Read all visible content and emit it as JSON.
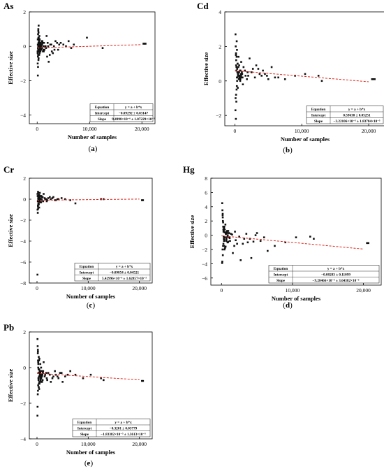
{
  "chart_data": [
    {
      "type": "scatter",
      "panel_title": "As",
      "caption_letter": "a",
      "xlabel": "Number of samples",
      "ylabel": "Effective size",
      "xlim": [
        -1500,
        22500
      ],
      "ylim": [
        -4.5,
        2
      ],
      "xticks": [
        0,
        10000,
        20000
      ],
      "xtick_labels": [
        "0",
        "10,000",
        "20,000"
      ],
      "yticks": [
        2,
        0,
        -2,
        -4
      ],
      "ytick_labels": [
        "2",
        "0",
        "−2",
        "−4"
      ],
      "fit_line": {
        "x": [
          0,
          20000
        ],
        "y": [
          -0.093,
          0.097
        ]
      },
      "stats_table": {
        "rows": [
          [
            "Equation",
            "y = a + b*x"
          ],
          [
            "Intercept",
            "−0.09292 ± 0.03147"
          ],
          [
            "Slope",
            "9.4998×10⁻⁶ ± 1.07229×10⁻⁵"
          ]
        ]
      },
      "points": {
        "x": [
          120,
          200,
          150,
          250,
          80,
          300,
          180,
          260,
          220,
          140,
          350,
          400,
          500,
          450,
          600,
          700,
          800,
          900,
          1000,
          1200,
          1500,
          1800,
          2000,
          2500,
          3000,
          3500,
          4000,
          4500,
          5000,
          6000,
          7000,
          9500,
          12500,
          20300,
          20500,
          20700,
          100,
          130,
          160,
          210,
          240,
          280,
          320,
          370,
          420,
          470,
          550,
          650,
          750,
          850,
          950,
          1100,
          1300,
          1600,
          1900,
          2200,
          2700,
          3200,
          110,
          90,
          170,
          190,
          230,
          270,
          310,
          340,
          380,
          430,
          480,
          520,
          580,
          620,
          680,
          720,
          780,
          820,
          880,
          940,
          1050,
          1150,
          1250,
          1400,
          1700,
          2100,
          2400,
          2800,
          3300,
          3800,
          4200,
          5500,
          6500
        ],
        "y": [
          0.1,
          0.0,
          -0.1,
          0.2,
          -0.3,
          0.5,
          -0.5,
          0.8,
          1.0,
          -0.6,
          0.3,
          0.1,
          -0.2,
          0.4,
          0.0,
          0.2,
          -0.1,
          0.1,
          0.3,
          -0.2,
          0.0,
          0.6,
          0.2,
          0.1,
          -0.4,
          0.3,
          -0.2,
          0.2,
          0.1,
          0.3,
          0.1,
          0.5,
          -0.1,
          0.15,
          0.15,
          0.15,
          -1.0,
          -1.7,
          -1.2,
          0.9,
          -0.8,
          1.2,
          0.4,
          -0.3,
          0.6,
          -0.4,
          0.2,
          0.0,
          -0.1,
          0.3,
          0.1,
          -0.3,
          0.2,
          0.0,
          -0.6,
          -0.9,
          0.1,
          0.0,
          0.4,
          -0.4,
          0.7,
          -0.2,
          0.5,
          -0.7,
          0.0,
          0.3,
          -0.5,
          0.2,
          0.4,
          -0.1,
          0.1,
          -0.3,
          0.2,
          0.0,
          -0.2,
          0.1,
          0.3,
          -0.1,
          0.2,
          0.0,
          -0.3,
          -0.2,
          -0.1,
          0.0,
          -0.5,
          -0.3,
          -0.2,
          0.2,
          0.1,
          0.0,
          -0.1
        ]
      }
    },
    {
      "type": "scatter",
      "panel_title": "Cd",
      "caption_letter": "b",
      "xlabel": "Number of samples",
      "ylabel": "Effective size",
      "xlim": [
        -1500,
        22500
      ],
      "ylim": [
        -2.6,
        4
      ],
      "xticks": [
        0,
        10000,
        20000
      ],
      "xtick_labels": [
        "0",
        "10,000",
        "20,000"
      ],
      "yticks": [
        4,
        2,
        0,
        -2
      ],
      "ytick_labels": [
        "4",
        "2",
        "0",
        "−2"
      ],
      "fit_line": {
        "x": [
          0,
          20000
        ],
        "y": [
          0.596,
          -0.048
        ]
      },
      "stats_table": {
        "rows": [
          [
            "Equation",
            "y = a + b*x"
          ],
          [
            "Intercept",
            "0.59638 ± 0.05251"
          ],
          [
            "Slope",
            "−3.22106×10⁻⁵ ± 1.83784×10⁻⁵"
          ]
        ]
      },
      "points": {
        "x": [
          100,
          130,
          160,
          200,
          240,
          280,
          320,
          370,
          420,
          470,
          550,
          650,
          750,
          850,
          950,
          1100,
          1300,
          1600,
          1900,
          2200,
          2700,
          3200,
          3700,
          4200,
          4800,
          5500,
          6500,
          7500,
          9000,
          10500,
          12500,
          13000,
          20500,
          20700,
          20900,
          110,
          90,
          150,
          180,
          220,
          260,
          300,
          340,
          390,
          440,
          500,
          600,
          700,
          800,
          900,
          1000,
          1200,
          1500,
          1800,
          2000,
          2500,
          3000,
          3500,
          4000,
          4500,
          5000,
          6000,
          170,
          190,
          230,
          270,
          310,
          350,
          400,
          460,
          520,
          580,
          640,
          700,
          760,
          820,
          880,
          940,
          1050,
          1150
        ],
        "y": [
          2.7,
          2.0,
          1.5,
          1.2,
          0.8,
          2.3,
          1.8,
          0.5,
          1.0,
          0.3,
          1.4,
          0.9,
          0.2,
          0.6,
          1.1,
          0.4,
          0.8,
          0.3,
          0.5,
          1.3,
          0.7,
          0.9,
          0.4,
          0.6,
          0.3,
          0.8,
          0.2,
          0.1,
          0.3,
          0.4,
          0.3,
          0.0,
          0.1,
          0.1,
          0.1,
          -1.0,
          -1.7,
          -2.2,
          -0.8,
          -1.2,
          -0.5,
          -0.3,
          0.0,
          0.2,
          -0.4,
          0.5,
          0.1,
          0.3,
          0.0,
          0.4,
          0.2,
          -0.2,
          0.6,
          0.1,
          0.3,
          0.5,
          0.2,
          0.7,
          0.3,
          0.4,
          0.1,
          0.2,
          1.6,
          0.9,
          0.6,
          1.4,
          0.2,
          0.7,
          1.0,
          0.4,
          0.8,
          0.3,
          0.5,
          0.2,
          0.6,
          0.1,
          0.4,
          0.3,
          0.5,
          0.2
        ]
      }
    },
    {
      "type": "scatter",
      "panel_title": "Cr",
      "caption_letter": "c",
      "xlabel": "Number of samples",
      "ylabel": "Effective size",
      "xlim": [
        -1500,
        22500
      ],
      "ylim": [
        -8,
        2
      ],
      "xticks": [
        0,
        10000,
        20000
      ],
      "xtick_labels": [
        "0",
        "10,000",
        "20,000"
      ],
      "yticks": [
        2,
        0,
        -2,
        -4,
        -6,
        -8
      ],
      "ytick_labels": [
        "2",
        "0",
        "−2",
        "−4",
        "−6",
        "−8"
      ],
      "fit_line": {
        "x": [
          0,
          20000
        ],
        "y": [
          -0.099,
          0.009
        ]
      },
      "stats_table": {
        "rows": [
          [
            "Equation",
            "y = a + b*x"
          ],
          [
            "Intercept",
            "−0.09854 ± 0.04521"
          ],
          [
            "Slope",
            "5.42996×10⁻⁶ ± 1.62857×10⁻⁵"
          ]
        ]
      },
      "points": {
        "x": [
          100,
          130,
          160,
          200,
          240,
          280,
          320,
          370,
          420,
          470,
          550,
          650,
          750,
          850,
          950,
          1100,
          1300,
          1600,
          1900,
          2200,
          2700,
          3200,
          3700,
          4200,
          4800,
          5500,
          6500,
          7500,
          12500,
          13000,
          20500,
          20700,
          110,
          90,
          150,
          180,
          220,
          260,
          300,
          340,
          390,
          440,
          500,
          600,
          700,
          800,
          900,
          1000,
          1200,
          1500,
          1800,
          2000,
          2500,
          3000,
          3500,
          4000,
          170,
          190,
          230,
          270,
          310,
          350,
          400,
          460,
          520,
          580
        ],
        "y": [
          0.5,
          0.3,
          -0.2,
          0.7,
          0.0,
          -0.5,
          0.4,
          0.1,
          -0.8,
          0.2,
          0.6,
          -0.3,
          0.0,
          0.3,
          -0.1,
          0.2,
          0.5,
          0.0,
          -0.2,
          0.1,
          0.0,
          0.2,
          -0.1,
          0.0,
          0.1,
          0.0,
          -0.1,
          -0.4,
          0.0,
          0.0,
          -0.1,
          -0.1,
          -1.0,
          -7.2,
          -1.3,
          -0.6,
          -0.9,
          0.6,
          -0.4,
          0.2,
          -0.2,
          0.4,
          -0.1,
          0.1,
          0.3,
          -0.3,
          0.0,
          0.2,
          -0.2,
          0.1,
          0.0,
          -0.1,
          0.2,
          0.1,
          -0.1,
          0.0,
          0.3,
          -0.7,
          0.1,
          -0.4,
          0.2,
          -0.5,
          0.0,
          0.3,
          -0.2,
          0.1
        ]
      }
    },
    {
      "type": "scatter",
      "panel_title": "Hg",
      "caption_letter": "d",
      "xlabel": "Number of samples",
      "ylabel": "Effective size",
      "xlim": [
        -1500,
        22500
      ],
      "ylim": [
        -7,
        8
      ],
      "xticks": [
        0,
        10000,
        20000
      ],
      "xtick_labels": [
        "0",
        "10,000",
        "20,000"
      ],
      "yticks": [
        8,
        6,
        4,
        2,
        0,
        -2,
        -4,
        -6
      ],
      "ytick_labels": [
        "8",
        "6",
        "4",
        "2",
        "0",
        "−2",
        "−4",
        "−6"
      ],
      "fit_line": {
        "x": [
          0,
          20000
        ],
        "y": [
          -0.083,
          -1.94
        ]
      },
      "stats_table": {
        "rows": [
          [
            "Equation",
            "y = a + b*x"
          ],
          [
            "Intercept",
            "−0.08283 ± 0.11099"
          ],
          [
            "Slope",
            "−9.28466×10⁻⁵ ± 3.64382×10⁻⁵"
          ]
        ]
      },
      "points": {
        "x": [
          100,
          130,
          160,
          200,
          240,
          280,
          320,
          370,
          420,
          470,
          550,
          650,
          750,
          850,
          950,
          1100,
          1300,
          1600,
          1900,
          2200,
          2700,
          3200,
          3700,
          4200,
          4800,
          5500,
          6500,
          7500,
          9000,
          10500,
          12500,
          13000,
          20500,
          20700,
          110,
          90,
          150,
          180,
          220,
          260,
          300,
          340,
          390,
          440,
          500,
          600,
          700,
          800,
          900,
          1000,
          1200,
          1500,
          1800,
          2000,
          2500,
          3000,
          3500,
          4000,
          4500,
          5000,
          6000,
          170,
          190,
          230,
          270,
          310,
          350,
          400,
          460,
          520,
          580,
          640,
          700,
          760,
          820,
          880,
          940,
          1050,
          1150
        ],
        "y": [
          4.5,
          3.5,
          2.8,
          2.0,
          1.2,
          0.5,
          -0.5,
          -1.5,
          -2.0,
          0.8,
          1.5,
          -0.8,
          0.3,
          -1.0,
          0.6,
          -0.3,
          0.2,
          -2.5,
          0.5,
          -1.2,
          -3.5,
          -0.5,
          -1.0,
          -3.2,
          0.0,
          -0.8,
          -2.2,
          -1.5,
          -1.0,
          -0.3,
          -0.2,
          -0.5,
          -1.1,
          -1.1,
          -3.7,
          -3.9,
          -2.0,
          2.5,
          -1.5,
          0.8,
          -0.2,
          1.0,
          -0.6,
          0.4,
          -1.8,
          0.2,
          -0.4,
          0.6,
          -1.0,
          0.3,
          -0.8,
          0.1,
          -1.5,
          -0.7,
          -0.2,
          -1.2,
          0.2,
          -0.5,
          -0.9,
          0.3,
          -0.3,
          3.0,
          -2.8,
          1.8,
          -1.2,
          0.6,
          -0.8,
          1.2,
          -0.3,
          0.4,
          -1.6,
          0.2,
          -0.6,
          0.5,
          -0.2,
          0.0,
          -0.9,
          0.3,
          -0.4
        ]
      }
    },
    {
      "type": "scatter",
      "panel_title": "Pb",
      "caption_letter": "e",
      "xlabel": "Number of samples",
      "ylabel": "Effective size",
      "xlim": [
        -1500,
        22500
      ],
      "ylim": [
        -4,
        2
      ],
      "xticks": [
        0,
        10000,
        20000
      ],
      "xtick_labels": [
        "0",
        "10,000",
        "20,000"
      ],
      "yticks": [
        2,
        0,
        -2,
        -4
      ],
      "ytick_labels": [
        "2",
        "0",
        "−2",
        "−4"
      ],
      "fit_line": {
        "x": [
          0,
          20000
        ],
        "y": [
          -0.32,
          -0.687
        ]
      },
      "stats_table": {
        "rows": [
          [
            "Equation",
            "y = a + b*x"
          ],
          [
            "Intercept",
            "−0.3201 ± 0.03779"
          ],
          [
            "Slope",
            "−1.83382×10⁻⁵ ± 1.3613×10⁻⁵"
          ]
        ]
      },
      "points": {
        "x": [
          100,
          130,
          160,
          200,
          240,
          280,
          320,
          370,
          420,
          470,
          550,
          650,
          750,
          850,
          950,
          1100,
          1300,
          1600,
          1900,
          2200,
          2700,
          3200,
          3700,
          4200,
          4800,
          5500,
          6500,
          7500,
          9000,
          10500,
          12500,
          13000,
          20500,
          20700,
          110,
          90,
          150,
          180,
          220,
          260,
          300,
          340,
          390,
          440,
          500,
          600,
          700,
          800,
          900,
          1000,
          1200,
          1500,
          1800,
          2000,
          2500,
          3000,
          3500,
          4000,
          4500,
          5000,
          6000,
          170,
          190,
          230,
          270,
          310,
          350,
          400,
          460,
          520,
          580,
          640,
          700,
          760,
          820,
          880,
          940,
          1050,
          1150
        ],
        "y": [
          1.6,
          1.2,
          0.8,
          0.4,
          0.0,
          -0.3,
          -0.6,
          -0.9,
          -1.2,
          0.5,
          -0.4,
          0.2,
          -0.8,
          -0.2,
          -0.5,
          -0.7,
          0.3,
          -0.4,
          -0.6,
          -0.3,
          -0.8,
          -0.5,
          -0.4,
          -0.6,
          -0.3,
          -0.5,
          -0.2,
          -0.4,
          -0.6,
          -0.4,
          -0.6,
          -0.7,
          -0.75,
          -0.75,
          -2.2,
          -2.7,
          -1.5,
          0.9,
          -1.0,
          0.2,
          -0.7,
          0.6,
          -0.5,
          -0.1,
          -0.9,
          -0.3,
          -0.6,
          0.0,
          -0.4,
          -0.8,
          -0.2,
          -0.5,
          -0.3,
          -0.7,
          -0.4,
          -0.6,
          -0.2,
          -0.5,
          -0.3,
          -0.8,
          -0.4,
          1.0,
          -1.3,
          0.3,
          -0.6,
          -0.1,
          -1.1,
          0.4,
          -0.8,
          -0.2,
          -0.5,
          -0.3,
          -0.7,
          -0.4,
          -0.6,
          -0.2,
          -0.5,
          -0.4,
          -0.3
        ]
      }
    }
  ]
}
